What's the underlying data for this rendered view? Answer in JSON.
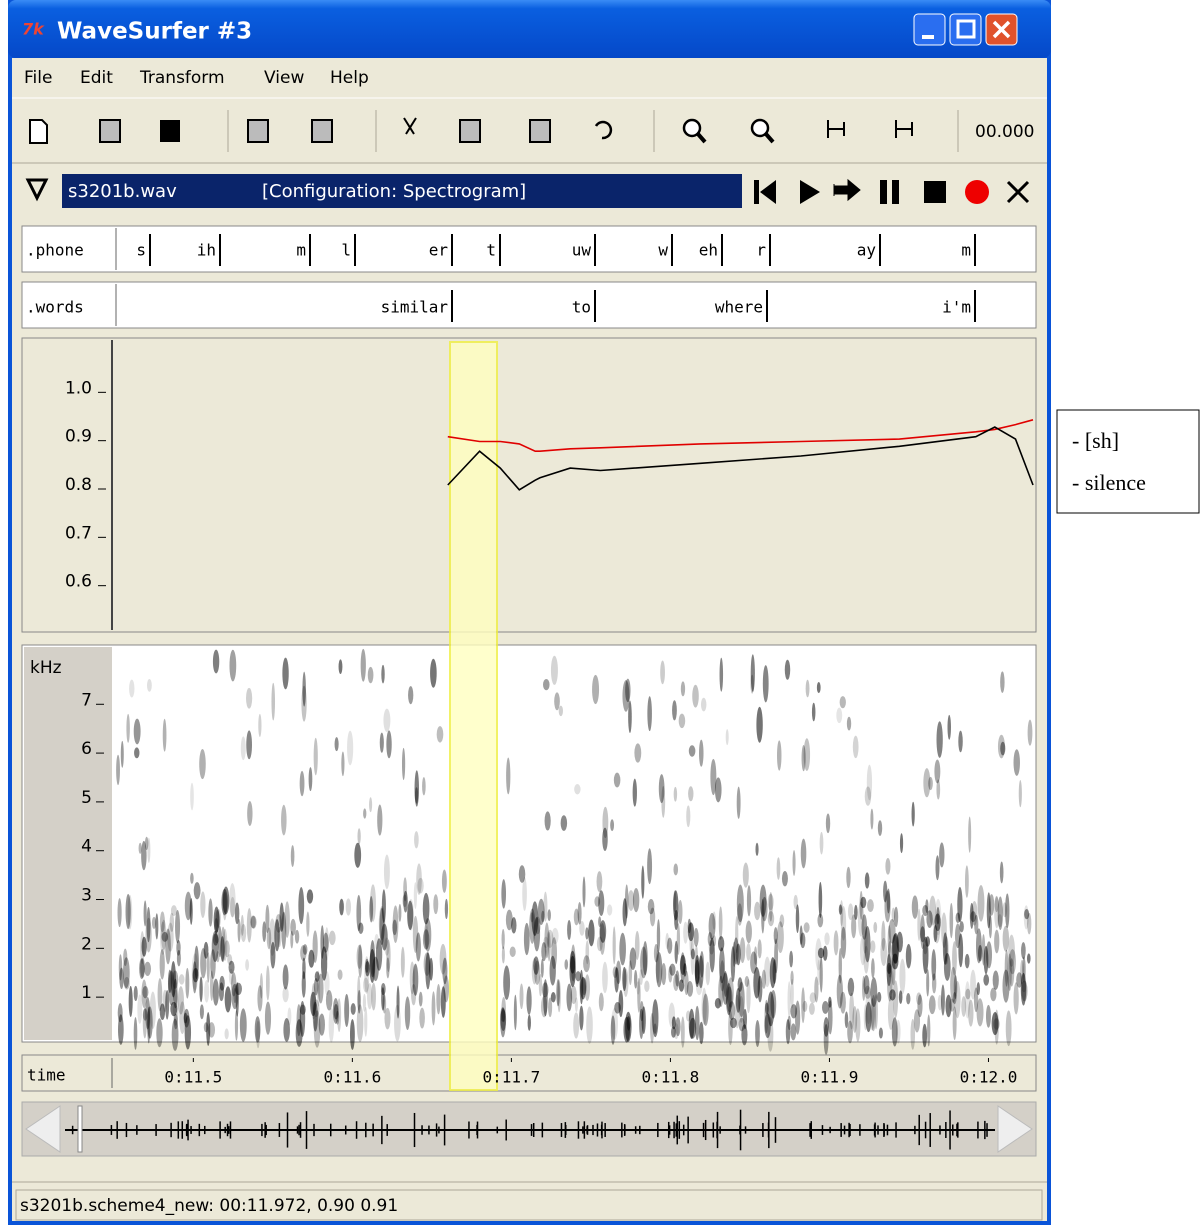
{
  "window": {
    "title": "WaveSurfer #3"
  },
  "menu": [
    "File",
    "Edit",
    "Transform",
    "View",
    "Help"
  ],
  "toolbar": {
    "time": "00.000"
  },
  "sound": {
    "file": "s3201b.wav",
    "configuration": "[Configuration: Spectrogram]"
  },
  "phone": {
    "label": ".phone",
    "segments": [
      "s",
      "ih",
      "m",
      "l",
      "er",
      "t",
      "uw",
      "w",
      "eh",
      "r",
      "ay",
      "m"
    ]
  },
  "words": {
    "label": ".words",
    "segments": [
      "similar",
      "to",
      "where",
      "i'm"
    ]
  },
  "chart_data": [
    {
      "type": "line",
      "ylim": [
        0.5,
        1.1
      ],
      "yticks": [
        {
          "value": 1,
          "label": "1.0"
        },
        0.9,
        0.8,
        0.7,
        0.6
      ],
      "xlim": [
        11.452,
        12.028
      ],
      "x_label": "time",
      "xticks": [
        {
          "value": 11.5,
          "label": "0:11.5"
        },
        {
          "value": 11.6,
          "label": "0:11.6"
        },
        {
          "value": 11.7,
          "label": "0:11.7"
        },
        {
          "value": 11.8,
          "label": "0:11.8"
        },
        {
          "value": 11.9,
          "label": "0:11.9"
        },
        {
          "value": 12,
          "label": "0:12.0"
        }
      ],
      "x": [
        11.66,
        11.68,
        11.693,
        11.705,
        11.715,
        11.718,
        11.737,
        11.756,
        11.819,
        11.882,
        11.944,
        11.992,
        12.004,
        12.017,
        12.028
      ],
      "series": [
        {
          "color": "#e00000",
          "values": [
            0.9,
            0.89,
            0.89,
            0.885,
            0.87,
            0.87,
            0.875,
            0.877,
            0.885,
            0.89,
            0.895,
            0.91,
            0.915,
            0.925,
            0.935
          ]
        },
        {
          "color": "#000000",
          "values": [
            0.8,
            0.87,
            0.835,
            0.79,
            0.81,
            0.815,
            0.835,
            0.83,
            0.845,
            0.86,
            0.88,
            0.9,
            0.92,
            0.895,
            0.8
          ]
        }
      ]
    },
    {
      "type": "spectrogram",
      "y_label": "kHz",
      "ylim": [
        0.04,
        8.03
      ],
      "yticks": [
        1,
        2,
        3,
        4,
        5,
        6,
        7
      ]
    }
  ],
  "status": "s3201b.scheme4_new: 00:11.972, 0.90 0.91",
  "legend_box": [
    "- [sh]",
    "- silence"
  ]
}
